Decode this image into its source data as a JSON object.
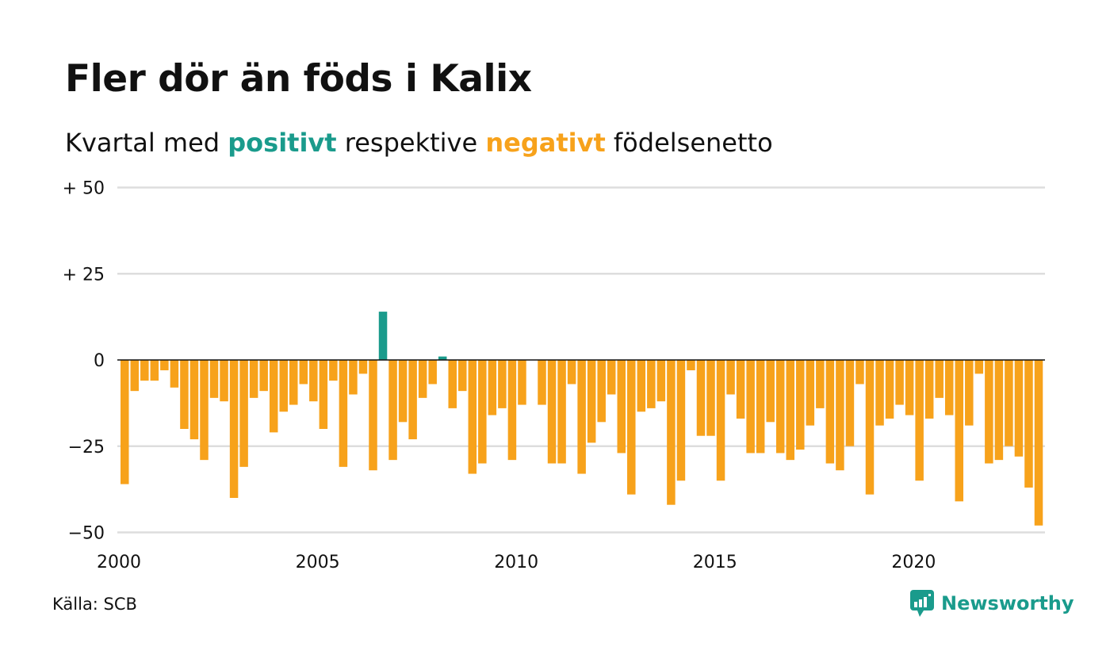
{
  "header": {
    "title": "Fler dör än föds i Kalix",
    "subtitle_pre": "Kvartal med ",
    "subtitle_pos": "positivt",
    "subtitle_mid": " respektive ",
    "subtitle_neg": "negativt",
    "subtitle_post": " födelsenetto"
  },
  "footer": {
    "source": "Källa: SCB",
    "brand": "Newsworthy"
  },
  "colors": {
    "positive": "#1a9b8c",
    "negative": "#f7a21b",
    "grid": "#dddddd",
    "baseline": "#111111"
  },
  "chart_data": {
    "type": "bar",
    "title": "Fler dör än föds i Kalix",
    "subtitle": "Kvartal med positivt respektive negativt födelsenetto",
    "x_start": "2000 Q1",
    "x_ticks": [
      "2000",
      "2005",
      "2010",
      "2015",
      "2020"
    ],
    "y_ticks": [
      {
        "value": 50,
        "label": "+ 50"
      },
      {
        "value": 25,
        "label": "+ 25"
      },
      {
        "value": 0,
        "label": "0"
      },
      {
        "value": -25,
        "label": "−25"
      },
      {
        "value": -50,
        "label": "−50"
      }
    ],
    "ylim": [
      -50,
      50
    ],
    "grid": true,
    "values": [
      -36,
      -9,
      -6,
      -6,
      -3,
      -8,
      -20,
      -23,
      -29,
      -11,
      -12,
      -40,
      -31,
      -11,
      -9,
      -21,
      -15,
      -13,
      -7,
      -12,
      -20,
      -6,
      -31,
      -10,
      -4,
      -32,
      14,
      -29,
      -18,
      -23,
      -11,
      -7,
      1,
      -14,
      -9,
      -33,
      -30,
      -16,
      -14,
      -29,
      -13,
      0,
      -13,
      -30,
      -30,
      -7,
      -33,
      -24,
      -18,
      -10,
      -27,
      -39,
      -15,
      -14,
      -12,
      -42,
      -35,
      -3,
      -22,
      -22,
      -35,
      -10,
      -17,
      -27,
      -27,
      -18,
      -27,
      -29,
      -26,
      -19,
      -14,
      -30,
      -32,
      -25,
      -7,
      -39,
      -19,
      -17,
      -13,
      -16,
      -35,
      -17,
      -11,
      -16,
      -41,
      -19,
      -4,
      -30,
      -29,
      -25,
      -28,
      -37,
      -48
    ]
  }
}
